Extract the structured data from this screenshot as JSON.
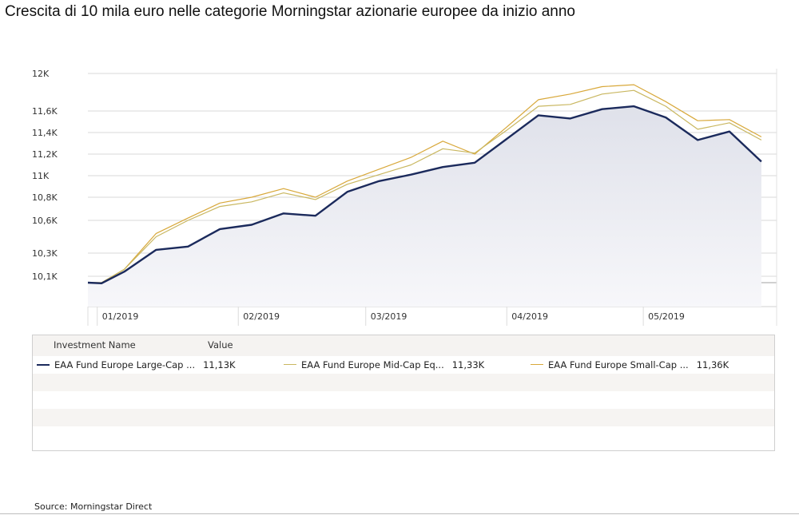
{
  "title": "Crescita di 10 mila euro nelle categorie Morningstar azionarie europee da inizio anno",
  "source": "Source: Morningstar Direct",
  "legend": {
    "header_name": "Investment Name",
    "header_value": "Value",
    "entries": [
      {
        "name": "EAA Fund Europe Large-Cap ...",
        "value": "11,13K",
        "color": "#1b2a5c"
      },
      {
        "name": "EAA Fund Europe Mid-Cap Eq...",
        "value": "11,33K",
        "color": "#c9b760"
      },
      {
        "name": "EAA Fund Europe Small-Cap ...",
        "value": "11,36K",
        "color": "#d8a83a"
      }
    ]
  },
  "chart_data": {
    "type": "area",
    "title": "Crescita di 10 mila euro nelle categorie Morningstar azionarie europee da inizio anno",
    "xlabel": "",
    "ylabel": "",
    "x_tick_labels": [
      "01/2019",
      "02/2019",
      "03/2019",
      "04/2019",
      "05/2019"
    ],
    "y_tick_labels": [
      "10,1K",
      "10,3K",
      "10,6K",
      "10,8K",
      "11K",
      "11,2K",
      "11,4K",
      "11,6K",
      "12K"
    ],
    "grid": true,
    "legend_position": "bottom",
    "x": [
      "2018-12-31",
      "2019-01-03",
      "2019-01-08",
      "2019-01-15",
      "2019-01-22",
      "2019-01-29",
      "2019-02-05",
      "2019-02-12",
      "2019-02-19",
      "2019-02-26",
      "2019-03-05",
      "2019-03-12",
      "2019-03-19",
      "2019-03-26",
      "2019-04-02",
      "2019-04-09",
      "2019-04-16",
      "2019-04-23",
      "2019-04-30",
      "2019-05-07",
      "2019-05-14",
      "2019-05-21",
      "2019-05-28"
    ],
    "series": [
      {
        "name": "EAA Fund Europe Large-Cap ...",
        "color": "#1b2a5c",
        "values": [
          10000,
          9990,
          10140,
          10330,
          10360,
          10520,
          10560,
          10660,
          10640,
          10850,
          10950,
          11010,
          11080,
          11120,
          11340,
          11560,
          11530,
          11620,
          11650,
          11540,
          11330,
          11410,
          11130
        ]
      },
      {
        "name": "EAA Fund Europe Mid-Cap Eq...",
        "color": "#c9b760",
        "values": [
          10000,
          10000,
          10160,
          10450,
          10600,
          10720,
          10760,
          10840,
          10780,
          10920,
          11010,
          11100,
          11250,
          11210,
          11420,
          11650,
          11670,
          11780,
          11820,
          11650,
          11430,
          11490,
          11330
        ]
      },
      {
        "name": "EAA Fund Europe Small-Cap ...",
        "color": "#d8a83a",
        "values": [
          10000,
          10000,
          10160,
          10480,
          10620,
          10750,
          10800,
          10880,
          10800,
          10950,
          11060,
          11170,
          11320,
          11200,
          11450,
          11720,
          11780,
          11860,
          11880,
          11700,
          11510,
          11520,
          11360
        ]
      }
    ]
  }
}
